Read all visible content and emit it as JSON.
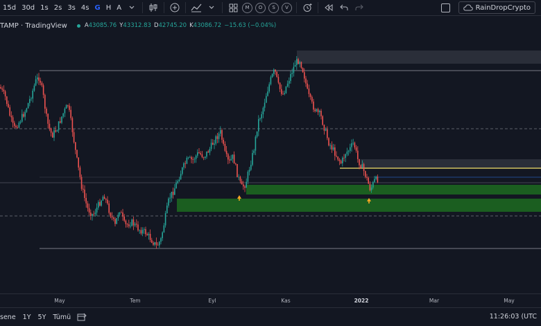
{
  "toolbar": {
    "intervals": [
      "15d",
      "30d",
      "1s",
      "2s",
      "3s",
      "4s"
    ],
    "chart_type_letters": [
      "G",
      "H",
      "A"
    ],
    "active_letter": "G",
    "circle_buttons": [
      "M",
      "O",
      "S",
      "V"
    ]
  },
  "account": {
    "name": "RainDropCrypto"
  },
  "legend": {
    "symbol": "TAMP",
    "source": "· TradingView",
    "open_key": "A",
    "open": "43085.76",
    "high_key": "Y",
    "high": "43312.83",
    "low_key": "D",
    "low": "42745.20",
    "close_key": "K",
    "close": "43086.72",
    "change": "−15.63 (−0.04%)"
  },
  "xaxis_labels": [
    {
      "label": "May",
      "bold": false
    },
    {
      "label": "Tem",
      "bold": false
    },
    {
      "label": "Eyl",
      "bold": false
    },
    {
      "label": "Kas",
      "bold": false
    },
    {
      "label": "2022",
      "bold": true
    },
    {
      "label": "Mar",
      "bold": false
    },
    {
      "label": "May",
      "bold": false
    }
  ],
  "bottombar": {
    "ranges": [
      "sene",
      "1Y",
      "5Y",
      "Tümü"
    ],
    "time": "11:26:03 (UTC"
  },
  "colors": {
    "background": "#131722",
    "up": "#26a69a",
    "down": "#ef5350",
    "zone_green": "#1b5e20",
    "zone_grey": "#2a2e39",
    "yellow_line": "#f5e36b",
    "level_line": "#787b86"
  }
}
